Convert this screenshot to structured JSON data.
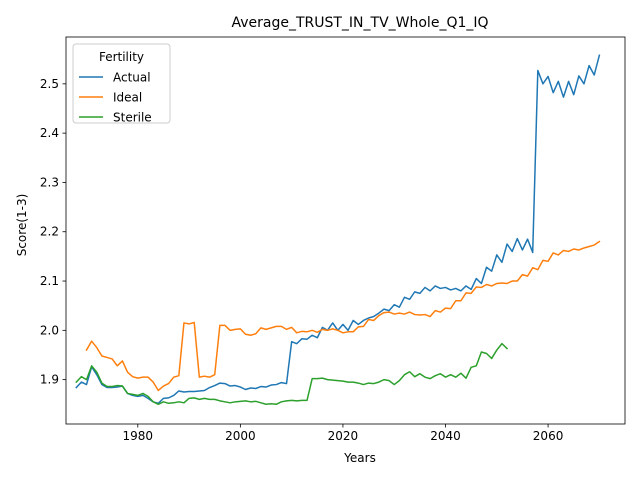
{
  "chart_data": {
    "type": "line",
    "title": "Average_TRUST_IN_TV_Whole_Q1_IQ",
    "xlabel": "Years",
    "ylabel": "Score(1-3)",
    "xlim": [
      1966,
      2075
    ],
    "ylim": [
      1.81,
      2.595
    ],
    "xticks": [
      1980,
      2000,
      2020,
      2040,
      2060
    ],
    "yticks": [
      1.9,
      2.0,
      2.1,
      2.2,
      2.3,
      2.4,
      2.5
    ],
    "xtick_labels": [
      "1980",
      "2000",
      "2020",
      "2040",
      "2060"
    ],
    "ytick_labels": [
      "1.9",
      "2.0",
      "2.1",
      "2.2",
      "2.3",
      "2.4",
      "2.5"
    ],
    "legend": {
      "title": "Fertility",
      "placement": "top-left"
    },
    "grid": false,
    "series": [
      {
        "name": "Actual",
        "color": "#1f77b4",
        "points": [
          [
            1968,
            1.884
          ],
          [
            1969,
            1.895
          ],
          [
            1970,
            1.89
          ],
          [
            1971,
            1.926
          ],
          [
            1972,
            1.91
          ],
          [
            1973,
            1.89
          ],
          [
            1974,
            1.884
          ],
          [
            1975,
            1.884
          ],
          [
            1976,
            1.885
          ],
          [
            1977,
            1.887
          ],
          [
            1978,
            1.872
          ],
          [
            1979,
            1.868
          ],
          [
            1980,
            1.866
          ],
          [
            1981,
            1.868
          ],
          [
            1982,
            1.862
          ],
          [
            1983,
            1.855
          ],
          [
            1984,
            1.852
          ],
          [
            1985,
            1.862
          ],
          [
            1986,
            1.863
          ],
          [
            1987,
            1.868
          ],
          [
            1988,
            1.877
          ],
          [
            1989,
            1.875
          ],
          [
            1990,
            1.876
          ],
          [
            1991,
            1.876
          ],
          [
            1992,
            1.877
          ],
          [
            1993,
            1.878
          ],
          [
            1994,
            1.884
          ],
          [
            1995,
            1.888
          ],
          [
            1996,
            1.893
          ],
          [
            1997,
            1.892
          ],
          [
            1998,
            1.887
          ],
          [
            1999,
            1.888
          ],
          [
            2000,
            1.885
          ],
          [
            2001,
            1.88
          ],
          [
            2002,
            1.883
          ],
          [
            2003,
            1.882
          ],
          [
            2004,
            1.886
          ],
          [
            2005,
            1.885
          ],
          [
            2006,
            1.889
          ],
          [
            2007,
            1.89
          ],
          [
            2008,
            1.894
          ],
          [
            2009,
            1.892
          ],
          [
            2010,
            1.977
          ],
          [
            2011,
            1.973
          ],
          [
            2012,
            1.983
          ],
          [
            2013,
            1.982
          ],
          [
            2014,
            1.99
          ],
          [
            2015,
            1.985
          ],
          [
            2016,
            2.006
          ],
          [
            2017,
            2.0
          ],
          [
            2018,
            2.015
          ],
          [
            2019,
            2.0
          ],
          [
            2020,
            2.012
          ],
          [
            2021,
            2.0
          ],
          [
            2022,
            2.02
          ],
          [
            2023,
            2.012
          ],
          [
            2024,
            2.02
          ],
          [
            2025,
            2.025
          ],
          [
            2026,
            2.028
          ],
          [
            2027,
            2.035
          ],
          [
            2028,
            2.043
          ],
          [
            2029,
            2.04
          ],
          [
            2030,
            2.052
          ],
          [
            2031,
            2.047
          ],
          [
            2032,
            2.067
          ],
          [
            2033,
            2.063
          ],
          [
            2034,
            2.078
          ],
          [
            2035,
            2.075
          ],
          [
            2036,
            2.087
          ],
          [
            2037,
            2.08
          ],
          [
            2038,
            2.09
          ],
          [
            2039,
            2.085
          ],
          [
            2040,
            2.087
          ],
          [
            2041,
            2.082
          ],
          [
            2042,
            2.085
          ],
          [
            2043,
            2.08
          ],
          [
            2044,
            2.09
          ],
          [
            2045,
            2.083
          ],
          [
            2046,
            2.105
          ],
          [
            2047,
            2.095
          ],
          [
            2048,
            2.128
          ],
          [
            2049,
            2.12
          ],
          [
            2050,
            2.153
          ],
          [
            2051,
            2.138
          ],
          [
            2052,
            2.175
          ],
          [
            2053,
            2.16
          ],
          [
            2054,
            2.186
          ],
          [
            2055,
            2.163
          ],
          [
            2056,
            2.185
          ],
          [
            2057,
            2.158
          ],
          [
            2058,
            2.527
          ],
          [
            2059,
            2.5
          ],
          [
            2060,
            2.515
          ],
          [
            2061,
            2.482
          ],
          [
            2062,
            2.505
          ],
          [
            2063,
            2.473
          ],
          [
            2064,
            2.505
          ],
          [
            2065,
            2.478
          ],
          [
            2066,
            2.516
          ],
          [
            2067,
            2.5
          ],
          [
            2068,
            2.537
          ],
          [
            2069,
            2.518
          ],
          [
            2070,
            2.558
          ]
        ]
      },
      {
        "name": "Ideal",
        "color": "#ff7f0e",
        "points": [
          [
            1970,
            1.96
          ],
          [
            1971,
            1.978
          ],
          [
            1972,
            1.965
          ],
          [
            1973,
            1.948
          ],
          [
            1974,
            1.945
          ],
          [
            1975,
            1.942
          ],
          [
            1976,
            1.928
          ],
          [
            1977,
            1.938
          ],
          [
            1978,
            1.915
          ],
          [
            1979,
            1.906
          ],
          [
            1980,
            1.903
          ],
          [
            1981,
            1.905
          ],
          [
            1982,
            1.905
          ],
          [
            1983,
            1.895
          ],
          [
            1984,
            1.878
          ],
          [
            1985,
            1.887
          ],
          [
            1986,
            1.892
          ],
          [
            1987,
            1.905
          ],
          [
            1988,
            1.908
          ],
          [
            1989,
            2.015
          ],
          [
            1990,
            2.013
          ],
          [
            1991,
            2.016
          ],
          [
            1992,
            1.905
          ],
          [
            1993,
            1.907
          ],
          [
            1994,
            1.905
          ],
          [
            1995,
            1.91
          ],
          [
            1996,
            2.01
          ],
          [
            1997,
            2.01
          ],
          [
            1998,
            2.0
          ],
          [
            1999,
            2.002
          ],
          [
            2000,
            2.003
          ],
          [
            2001,
            1.992
          ],
          [
            2002,
            1.99
          ],
          [
            2003,
            1.993
          ],
          [
            2004,
            2.005
          ],
          [
            2005,
            2.002
          ],
          [
            2006,
            2.005
          ],
          [
            2007,
            2.008
          ],
          [
            2008,
            2.008
          ],
          [
            2009,
            2.002
          ],
          [
            2010,
            2.006
          ],
          [
            2011,
            1.995
          ],
          [
            2012,
            1.998
          ],
          [
            2013,
            1.997
          ],
          [
            2014,
            2.0
          ],
          [
            2015,
            1.996
          ],
          [
            2016,
            2.002
          ],
          [
            2017,
            2.0
          ],
          [
            2018,
            2.003
          ],
          [
            2019,
            2.0
          ],
          [
            2020,
            1.995
          ],
          [
            2021,
            1.997
          ],
          [
            2022,
            1.997
          ],
          [
            2023,
            2.007
          ],
          [
            2024,
            2.008
          ],
          [
            2025,
            2.022
          ],
          [
            2026,
            2.02
          ],
          [
            2027,
            2.03
          ],
          [
            2028,
            2.036
          ],
          [
            2029,
            2.037
          ],
          [
            2030,
            2.033
          ],
          [
            2031,
            2.035
          ],
          [
            2032,
            2.033
          ],
          [
            2033,
            2.037
          ],
          [
            2034,
            2.032
          ],
          [
            2035,
            2.031
          ],
          [
            2036,
            2.032
          ],
          [
            2037,
            2.028
          ],
          [
            2038,
            2.04
          ],
          [
            2039,
            2.037
          ],
          [
            2040,
            2.045
          ],
          [
            2041,
            2.044
          ],
          [
            2042,
            2.06
          ],
          [
            2043,
            2.06
          ],
          [
            2044,
            2.076
          ],
          [
            2045,
            2.075
          ],
          [
            2046,
            2.088
          ],
          [
            2047,
            2.087
          ],
          [
            2048,
            2.093
          ],
          [
            2049,
            2.09
          ],
          [
            2050,
            2.095
          ],
          [
            2051,
            2.096
          ],
          [
            2052,
            2.095
          ],
          [
            2053,
            2.1
          ],
          [
            2054,
            2.1
          ],
          [
            2055,
            2.113
          ],
          [
            2056,
            2.11
          ],
          [
            2057,
            2.127
          ],
          [
            2058,
            2.123
          ],
          [
            2059,
            2.142
          ],
          [
            2060,
            2.14
          ],
          [
            2061,
            2.157
          ],
          [
            2062,
            2.153
          ],
          [
            2063,
            2.162
          ],
          [
            2064,
            2.16
          ],
          [
            2065,
            2.165
          ],
          [
            2066,
            2.163
          ],
          [
            2067,
            2.167
          ],
          [
            2068,
            2.17
          ],
          [
            2069,
            2.173
          ],
          [
            2070,
            2.18
          ]
        ]
      },
      {
        "name": "Sterile",
        "color": "#2ca02c",
        "points": [
          [
            1968,
            1.895
          ],
          [
            1969,
            1.906
          ],
          [
            1970,
            1.9
          ],
          [
            1971,
            1.928
          ],
          [
            1972,
            1.915
          ],
          [
            1973,
            1.893
          ],
          [
            1974,
            1.886
          ],
          [
            1975,
            1.886
          ],
          [
            1976,
            1.888
          ],
          [
            1977,
            1.887
          ],
          [
            1978,
            1.872
          ],
          [
            1979,
            1.87
          ],
          [
            1980,
            1.868
          ],
          [
            1981,
            1.872
          ],
          [
            1982,
            1.866
          ],
          [
            1983,
            1.855
          ],
          [
            1984,
            1.85
          ],
          [
            1985,
            1.855
          ],
          [
            1986,
            1.852
          ],
          [
            1987,
            1.853
          ],
          [
            1988,
            1.855
          ],
          [
            1989,
            1.853
          ],
          [
            1990,
            1.862
          ],
          [
            1991,
            1.863
          ],
          [
            1992,
            1.86
          ],
          [
            1993,
            1.862
          ],
          [
            1994,
            1.86
          ],
          [
            1995,
            1.86
          ],
          [
            1996,
            1.857
          ],
          [
            1997,
            1.855
          ],
          [
            1998,
            1.853
          ],
          [
            1999,
            1.855
          ],
          [
            2000,
            1.856
          ],
          [
            2001,
            1.857
          ],
          [
            2002,
            1.855
          ],
          [
            2003,
            1.856
          ],
          [
            2004,
            1.853
          ],
          [
            2005,
            1.85
          ],
          [
            2006,
            1.851
          ],
          [
            2007,
            1.85
          ],
          [
            2008,
            1.855
          ],
          [
            2009,
            1.857
          ],
          [
            2010,
            1.858
          ],
          [
            2011,
            1.857
          ],
          [
            2012,
            1.858
          ],
          [
            2013,
            1.858
          ],
          [
            2014,
            1.902
          ],
          [
            2015,
            1.902
          ],
          [
            2016,
            1.903
          ],
          [
            2017,
            1.9
          ],
          [
            2018,
            1.899
          ],
          [
            2019,
            1.898
          ],
          [
            2020,
            1.897
          ],
          [
            2021,
            1.895
          ],
          [
            2022,
            1.895
          ],
          [
            2023,
            1.893
          ],
          [
            2024,
            1.89
          ],
          [
            2025,
            1.893
          ],
          [
            2026,
            1.892
          ],
          [
            2027,
            1.895
          ],
          [
            2028,
            1.9
          ],
          [
            2029,
            1.898
          ],
          [
            2030,
            1.89
          ],
          [
            2031,
            1.898
          ],
          [
            2032,
            1.91
          ],
          [
            2033,
            1.916
          ],
          [
            2034,
            1.906
          ],
          [
            2035,
            1.912
          ],
          [
            2036,
            1.905
          ],
          [
            2037,
            1.902
          ],
          [
            2038,
            1.908
          ],
          [
            2039,
            1.912
          ],
          [
            2040,
            1.905
          ],
          [
            2041,
            1.91
          ],
          [
            2042,
            1.905
          ],
          [
            2043,
            1.913
          ],
          [
            2044,
            1.903
          ],
          [
            2045,
            1.925
          ],
          [
            2046,
            1.928
          ],
          [
            2047,
            1.956
          ],
          [
            2048,
            1.953
          ],
          [
            2049,
            1.943
          ],
          [
            2050,
            1.96
          ],
          [
            2051,
            1.973
          ],
          [
            2052,
            1.963
          ]
        ]
      }
    ]
  }
}
